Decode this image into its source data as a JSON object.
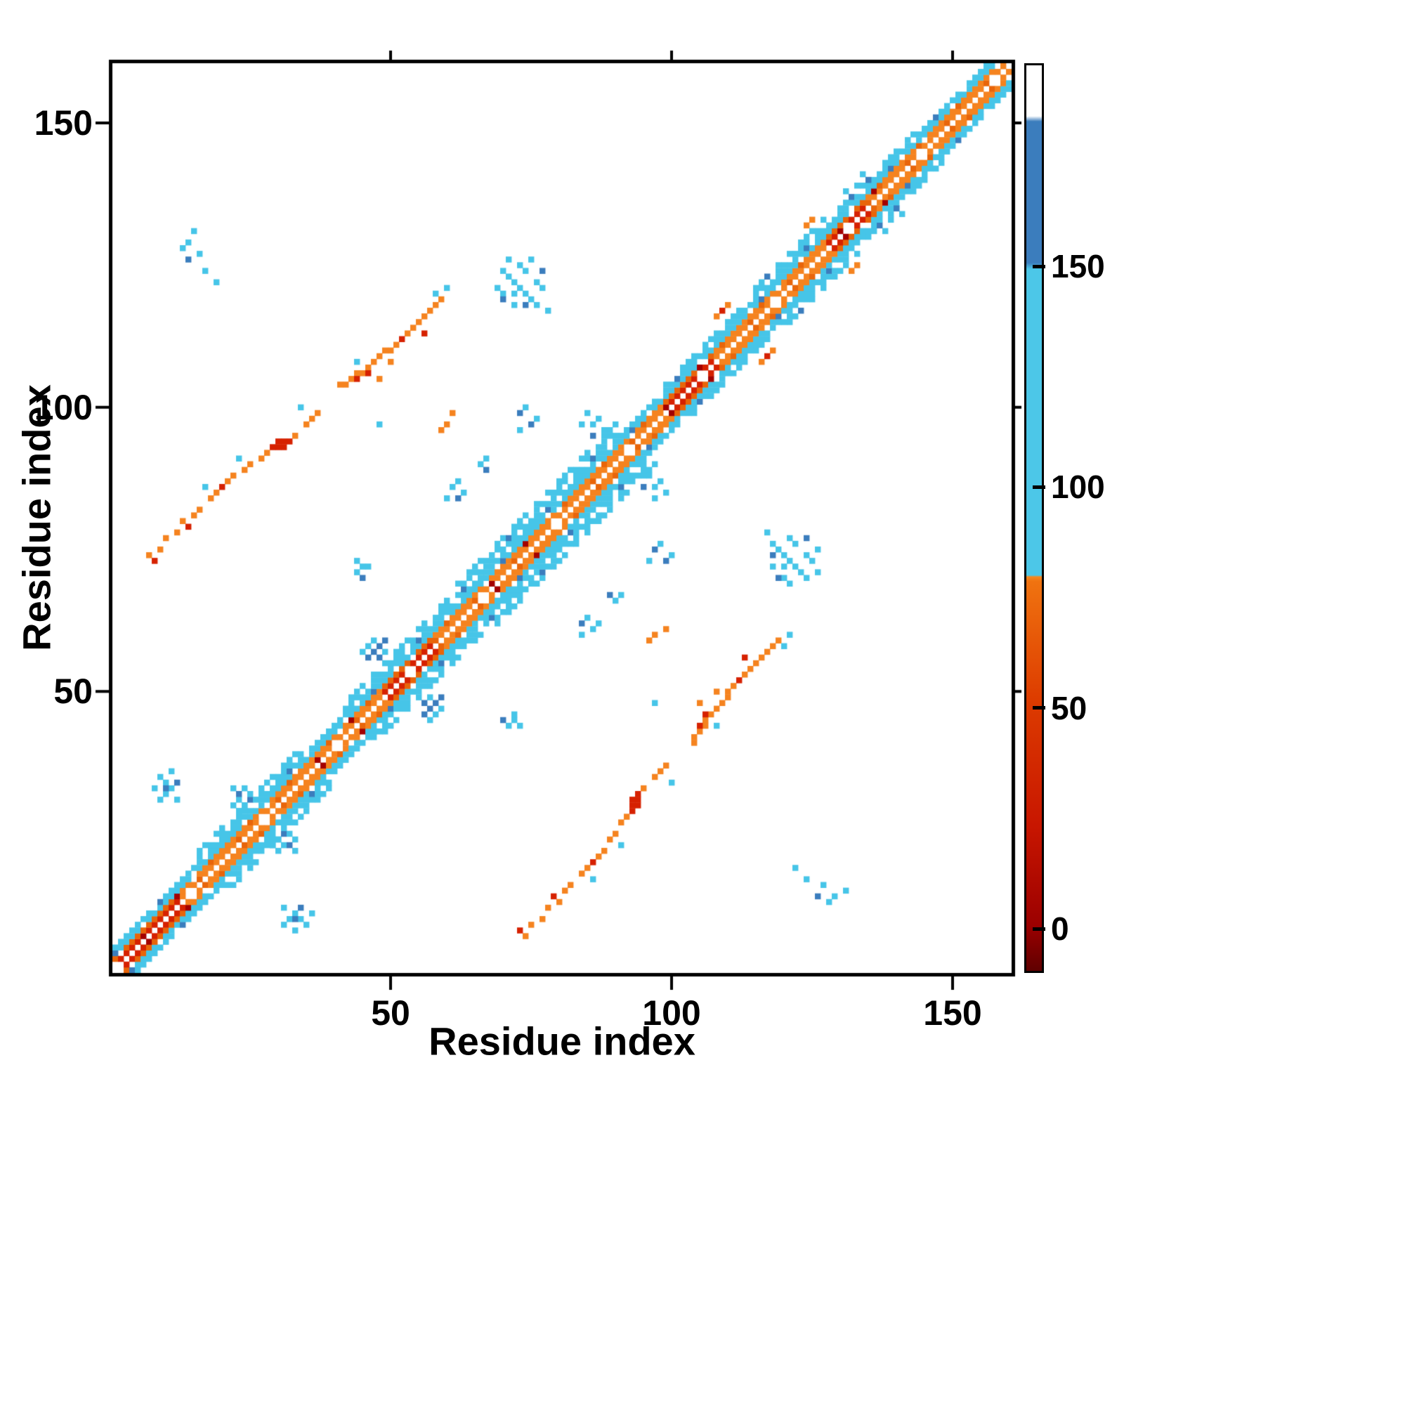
{
  "figure": {
    "background": "#ffffff"
  },
  "chart_data": {
    "type": "heatmap",
    "title": "",
    "xlabel": "Residue index",
    "ylabel": "Residue index",
    "x_range": [
      1,
      160
    ],
    "y_range": [
      1,
      160
    ],
    "x_ticks": [
      50,
      100,
      150
    ],
    "y_ticks": [
      50,
      100,
      150
    ],
    "grid": false,
    "symmetric": true,
    "diagonal_color": "#ffffff",
    "palette": {
      "orange": "#f5831f",
      "orange2": "#e8650a",
      "red": "#d62100",
      "darkred": "#a30000",
      "cyan": "#46c5e8",
      "blue": "#3b7dbd",
      "white": "#ffffff"
    },
    "colorbar": {
      "ticks": [
        0,
        50,
        100,
        150
      ],
      "vmin": -10,
      "vmax": 196,
      "stops": [
        {
          "pos": 0.0,
          "color": "#5f0000"
        },
        {
          "pos": 0.05,
          "color": "#9b0000"
        },
        {
          "pos": 0.16,
          "color": "#c81600"
        },
        {
          "pos": 0.3,
          "color": "#dd3c00"
        },
        {
          "pos": 0.43,
          "color": "#f07310"
        },
        {
          "pos": 0.435,
          "color": "#f5881f"
        },
        {
          "pos": 0.437,
          "color": "#4cc7e8"
        },
        {
          "pos": 0.775,
          "color": "#4cc7e8"
        },
        {
          "pos": 0.782,
          "color": "#3b7dbd"
        },
        {
          "pos": 0.938,
          "color": "#3b7dbd"
        },
        {
          "pos": 0.944,
          "color": "#ffffff"
        },
        {
          "pos": 1.0,
          "color": "#ffffff"
        }
      ]
    },
    "band": {
      "range": [
        1,
        160
      ],
      "base_halfwidth": 4,
      "inner_width": 2,
      "segments": [
        {
          "from": 16,
          "to": 34,
          "halfwidth": 6
        },
        {
          "from": 42,
          "to": 60,
          "halfwidth": 6
        },
        {
          "from": 62,
          "to": 90,
          "halfwidth": 7
        },
        {
          "from": 99,
          "to": 112,
          "halfwidth": 5
        },
        {
          "from": 115,
          "to": 127,
          "halfwidth": 6
        },
        {
          "from": 130,
          "to": 143,
          "halfwidth": 5
        }
      ],
      "red_ranges": [
        [
          1,
          12
        ],
        [
          49,
          57
        ],
        [
          99,
          107
        ],
        [
          128,
          134
        ]
      ],
      "texture": {
        "orange2_mod": 7,
        "red_mod": 31,
        "blue_mod": 23,
        "skip_mod_outer": 9,
        "skip_mod_outer2": 4,
        "skip_mod_inner": 13
      }
    },
    "clusters": [
      {
        "name": "cyan-dots-upper-left",
        "mirror": true,
        "points": {
          "cyan": [
            [
              13,
              128
            ],
            [
              14,
              129
            ],
            [
              16,
              127
            ],
            [
              17,
              124
            ],
            [
              15,
              131
            ],
            [
              19,
              122
            ]
          ],
          "blue": [
            [
              14,
              126
            ]
          ]
        }
      },
      {
        "name": "orange-streak-mid",
        "mirror": true,
        "points": {
          "orange": [
            [
              41,
              104
            ],
            [
              42,
              104
            ],
            [
              43,
              105
            ],
            [
              44,
              106
            ],
            [
              45,
              106
            ],
            [
              46,
              107
            ],
            [
              47,
              108
            ],
            [
              48,
              109
            ],
            [
              49,
              110
            ],
            [
              50,
              110
            ],
            [
              51,
              111
            ],
            [
              53,
              113
            ],
            [
              54,
              114
            ],
            [
              55,
              115
            ],
            [
              56,
              116
            ],
            [
              57,
              117
            ],
            [
              58,
              118
            ],
            [
              59,
              119
            ],
            [
              48,
              105
            ],
            [
              50,
              108
            ]
          ],
          "red": [
            [
              46,
              106
            ],
            [
              52,
              112
            ],
            [
              56,
              113
            ],
            [
              44,
              105
            ]
          ],
          "cyan": [
            [
              44,
              108
            ],
            [
              58,
              120
            ],
            [
              60,
              121
            ],
            [
              48,
              97
            ]
          ]
        }
      },
      {
        "name": "cyan-cross-cluster",
        "mirror": true,
        "points": {
          "cyan": [
            [
              70,
              120
            ],
            [
              70,
              124
            ],
            [
              71,
              123
            ],
            [
              71,
              126
            ],
            [
              72,
              120
            ],
            [
              72,
              122
            ],
            [
              73,
              121
            ],
            [
              73,
              125
            ],
            [
              74,
              120
            ],
            [
              74,
              124
            ],
            [
              75,
              119
            ],
            [
              75,
              126
            ],
            [
              76,
              118
            ],
            [
              76,
              122
            ],
            [
              77,
              121
            ],
            [
              78,
              117
            ],
            [
              69,
              121
            ],
            [
              72,
              118
            ]
          ],
          "blue": [
            [
              74,
              118
            ],
            [
              77,
              124
            ],
            [
              70,
              119
            ]
          ]
        }
      },
      {
        "name": "orange-scatter-sw",
        "mirror": true,
        "points": {
          "orange": [
            [
              7,
              74
            ],
            [
              9,
              75
            ],
            [
              10,
              77
            ],
            [
              12,
              78
            ],
            [
              13,
              80
            ],
            [
              15,
              81
            ],
            [
              16,
              82
            ],
            [
              18,
              84
            ],
            [
              19,
              85
            ],
            [
              21,
              87
            ],
            [
              22,
              88
            ],
            [
              24,
              89
            ]
          ],
          "red": [
            [
              8,
              73
            ],
            [
              14,
              79
            ],
            [
              20,
              86
            ]
          ],
          "cyan": [
            [
              17,
              86
            ],
            [
              23,
              91
            ]
          ]
        }
      },
      {
        "name": "red-blob",
        "mirror": true,
        "points": {
          "red": [
            [
              29,
              93
            ],
            [
              30,
              93
            ],
            [
              30,
              94
            ],
            [
              31,
              93
            ],
            [
              31,
              94
            ],
            [
              32,
              94
            ]
          ],
          "orange": [
            [
              28,
              92
            ],
            [
              33,
              95
            ],
            [
              35,
              97
            ],
            [
              36,
              98
            ],
            [
              25,
              90
            ],
            [
              27,
              91
            ],
            [
              37,
              99
            ]
          ],
          "cyan": [
            [
              34,
              100
            ]
          ]
        }
      },
      {
        "name": "cyan-cluster-low-left",
        "mirror": true,
        "points": {
          "cyan": [
            [
              9,
              31
            ],
            [
              10,
              32
            ],
            [
              10,
              34
            ],
            [
              11,
              33
            ],
            [
              12,
              31
            ],
            [
              9,
              35
            ],
            [
              11,
              36
            ],
            [
              8,
              33
            ]
          ],
          "blue": [
            [
              10,
              33
            ],
            [
              12,
              34
            ]
          ]
        }
      },
      {
        "name": "cyan-pair-mid",
        "mirror": true,
        "points": {
          "cyan": [
            [
              44,
              71
            ],
            [
              45,
              72
            ],
            [
              44,
              73
            ],
            [
              46,
              72
            ]
          ],
          "blue": [
            [
              45,
              70
            ]
          ]
        }
      },
      {
        "name": "cyan-dots-center",
        "mirror": true,
        "points": {
          "cyan": [
            [
              61,
              86
            ],
            [
              62,
              87
            ],
            [
              63,
              85
            ],
            [
              60,
              84
            ],
            [
              66,
              90
            ],
            [
              67,
              91
            ]
          ],
          "blue": [
            [
              62,
              84
            ],
            [
              67,
              89
            ]
          ]
        }
      },
      {
        "name": "cyan-dots-upper-mid",
        "mirror": true,
        "points": {
          "cyan": [
            [
              86,
              97
            ],
            [
              87,
              98
            ],
            [
              85,
              99
            ],
            [
              88,
              96
            ],
            [
              84,
              97
            ]
          ],
          "blue": [
            [
              86,
              95
            ]
          ]
        }
      },
      {
        "name": "blue-patch-band",
        "mirror": true,
        "points": {
          "blue": [
            [
              47,
              57
            ],
            [
              48,
              58
            ],
            [
              46,
              56
            ],
            [
              48,
              56
            ],
            [
              49,
              59
            ]
          ],
          "cyan": [
            [
              46,
              58
            ],
            [
              47,
              59
            ],
            [
              45,
              57
            ],
            [
              49,
              57
            ]
          ]
        }
      },
      {
        "name": "blue-dots-right-mid",
        "mirror": true,
        "points": {
          "blue": [
            [
              97,
              75
            ],
            [
              99,
              73
            ]
          ],
          "cyan": [
            [
              98,
              76
            ],
            [
              100,
              74
            ],
            [
              96,
              73
            ]
          ]
        }
      },
      {
        "name": "orange-dot-high",
        "mirror": true,
        "points": {
          "orange": [
            [
              125,
              133
            ],
            [
              124,
              132
            ]
          ]
        }
      },
      {
        "name": "orange-dots-ne",
        "mirror": true,
        "points": {
          "orange": [
            [
              110,
              118
            ],
            [
              108,
              116
            ]
          ],
          "red": [
            [
              109,
              117
            ]
          ]
        }
      },
      {
        "name": "cyan-dots-136",
        "mirror": true,
        "points": {
          "cyan": [
            [
              133,
              139
            ],
            [
              134,
              141
            ],
            [
              131,
              138
            ]
          ],
          "blue": [
            [
              135,
              140
            ]
          ]
        }
      },
      {
        "name": "orange-dots-96",
        "mirror": true,
        "points": {
          "orange": [
            [
              60,
              97
            ],
            [
              61,
              99
            ],
            [
              59,
              96
            ]
          ]
        }
      },
      {
        "name": "cyan-cross-low",
        "mirror": true,
        "points": {
          "cyan": [
            [
              22,
              30
            ],
            [
              23,
              31
            ],
            [
              24,
              30
            ],
            [
              23,
              29
            ],
            [
              25,
              32
            ],
            [
              24,
              33
            ],
            [
              22,
              33
            ]
          ],
          "blue": [
            [
              23,
              32
            ]
          ]
        }
      }
    ]
  }
}
